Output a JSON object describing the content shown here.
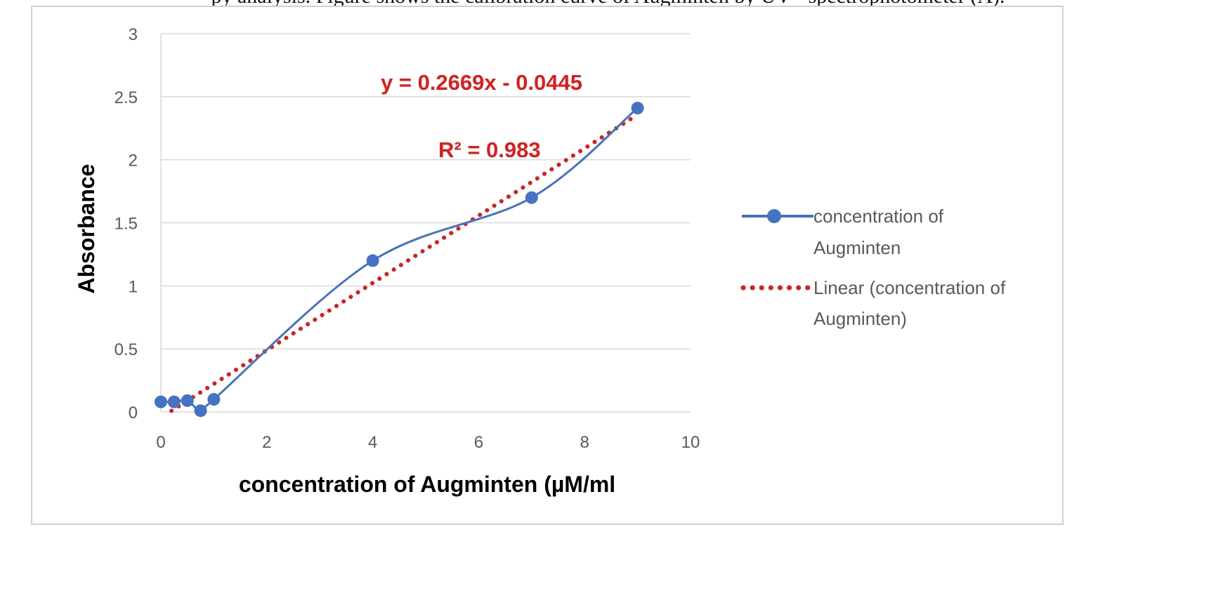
{
  "caption": "py analysis. Figure shows the calibration curve of Augminten by UV - spectrophotometer (A).",
  "chart_data": {
    "type": "scatter",
    "title": "",
    "xlabel": "concentration of Augminten (µM/ml",
    "ylabel": "Absorbance",
    "xlim": [
      0,
      10
    ],
    "ylim": [
      0,
      3
    ],
    "x_ticks": [
      "0",
      "2",
      "4",
      "6",
      "8",
      "10"
    ],
    "y_ticks": [
      "0",
      "0.5",
      "1",
      "1.5",
      "2",
      "2.5",
      "3"
    ],
    "grid": "horizontal",
    "legend_position": "right",
    "series": [
      {
        "name": "concentration of Augminten",
        "style": "smooth line with markers",
        "color": "#4472c4",
        "x": [
          0,
          0.25,
          0.5,
          0.75,
          1,
          4,
          7,
          9
        ],
        "y": [
          0.08,
          0.08,
          0.09,
          0.01,
          0.1,
          1.2,
          1.7,
          2.41
        ]
      },
      {
        "name": "Linear (concentration of Augminten)",
        "style": "dotted trendline",
        "color": "#e01b1b",
        "slope": 0.2669,
        "intercept": -0.0445,
        "x_range": [
          0.2,
          9
        ]
      }
    ],
    "annotations": [
      "y = 0.2669x - 0.0445",
      "R² = 0.983"
    ]
  },
  "legend": {
    "series1_line1": "concentration of",
    "series1_line2": "Augminten",
    "series2_line1": "Linear (concentration of",
    "series2_line2": "Augminten)"
  }
}
